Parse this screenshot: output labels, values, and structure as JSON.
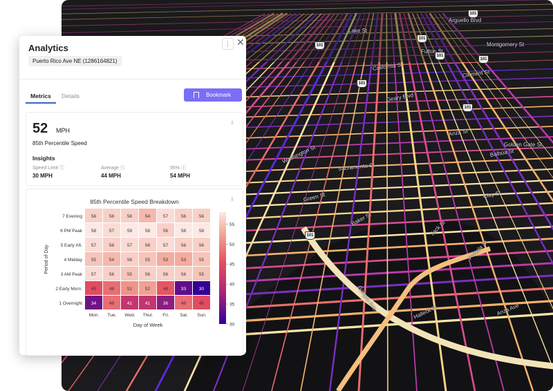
{
  "panel": {
    "title": "Analytics",
    "road_chip": "Puerto Rico Ave NE (1286164821)",
    "tabs": [
      "Metrics",
      "Details"
    ],
    "bookmark_label": "Bookmark",
    "speed": {
      "value": "52",
      "unit": "MPH",
      "label": "85th Percentile Speed"
    },
    "insights": {
      "title": "Insights",
      "items": [
        {
          "label": "Speed Limit",
          "value": "30 MPH"
        },
        {
          "label": "Average",
          "value": "44 MPH"
        },
        {
          "label": "95%",
          "value": "54 MPH"
        }
      ]
    }
  },
  "chart_data": {
    "type": "heatmap",
    "title": "85th Percentile Speed Breakdown",
    "xlabel": "Day of Week",
    "ylabel": "Period of Day",
    "x": [
      "Mon.",
      "Tue.",
      "Wed.",
      "Thur.",
      "Fri.",
      "Sat.",
      "Sun."
    ],
    "y": [
      "7 Evening",
      "6 PM Peak",
      "5 Early Aft.",
      "4 Midday",
      "3 AM Peak",
      "2 Early Morn.",
      "1 Overnight"
    ],
    "values": [
      [
        56,
        56,
        56,
        54,
        57,
        56,
        56
      ],
      [
        58,
        57,
        59,
        58,
        56,
        58,
        58
      ],
      [
        57,
        56,
        57,
        56,
        57,
        56,
        56
      ],
      [
        55,
        54,
        56,
        55,
        53,
        53,
        55
      ],
      [
        57,
        56,
        55,
        56,
        56,
        56,
        55
      ],
      [
        45,
        48,
        51,
        52,
        46,
        33,
        30
      ],
      [
        34,
        48,
        41,
        41,
        36,
        48,
        45
      ]
    ],
    "colorbar": {
      "ticks": [
        55,
        50,
        45,
        40,
        35,
        30
      ],
      "range": [
        30,
        58
      ]
    }
  },
  "map": {
    "labels": [
      "Lake St",
      "Arguello Blvd",
      "California St",
      "Clement St",
      "Geary Blvd",
      "Anza St",
      "Balboa St",
      "Fulton St",
      "Montgomery St",
      "Clay St",
      "Washington St",
      "Sacramento St",
      "Green St",
      "Baker St",
      "Jack St",
      "Portola St",
      "Golden Gate St",
      "Gorgas Ave",
      "Halleck St",
      "Anza Ave"
    ],
    "shields": [
      "101",
      "101",
      "101",
      "101",
      "101",
      "101",
      "101",
      "101"
    ]
  }
}
